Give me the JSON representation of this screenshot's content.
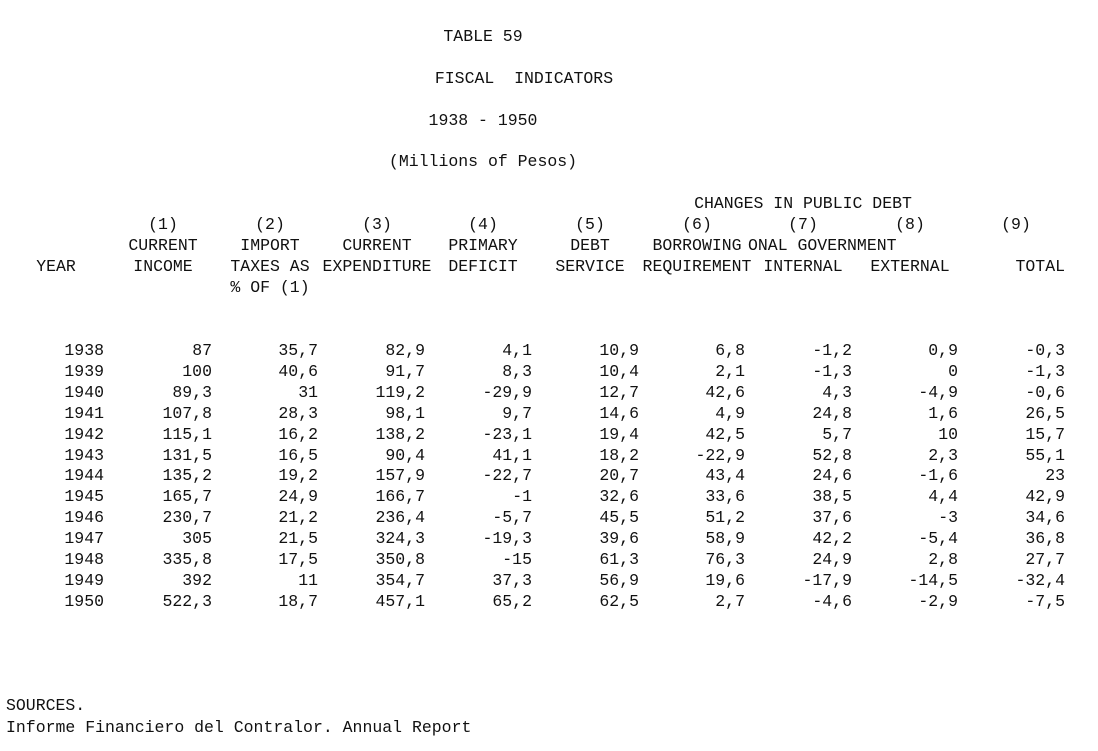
{
  "header": {
    "title": "TABLE 59",
    "subtitle": "FISCAL  INDICATORS",
    "period": "1938 - 1950",
    "units": "(Millions of Pesos)"
  },
  "table": {
    "group_header": "CHANGES IN PUBLIC DEBT",
    "group_subheader": "ONAL GOVERNMENT",
    "columns": [
      {
        "lines": [
          "YEAR"
        ]
      },
      {
        "number": "(1)",
        "lines": [
          "CURRENT",
          "INCOME"
        ]
      },
      {
        "number": "(2)",
        "lines": [
          "IMPORT",
          "TAXES AS",
          "% OF (1)"
        ]
      },
      {
        "number": "(3)",
        "lines": [
          "CURRENT",
          "EXPENDITURE"
        ]
      },
      {
        "number": "(4)",
        "lines": [
          "PRIMARY",
          "DEFICIT"
        ]
      },
      {
        "number": "(5)",
        "lines": [
          "DEBT",
          "SERVICE"
        ]
      },
      {
        "number": "(6)",
        "lines": [
          "BORROWING",
          "REQUIREMENT"
        ]
      },
      {
        "number": "(7)",
        "lines": [
          "INTERNAL"
        ]
      },
      {
        "number": "(8)",
        "lines": [
          "EXTERNAL"
        ]
      },
      {
        "number": "(9)",
        "lines": [
          "TOTAL"
        ]
      }
    ],
    "rows": [
      [
        "1938",
        "87",
        "35,7",
        "82,9",
        "4,1",
        "10,9",
        "6,8",
        "-1,2",
        "0,9",
        "-0,3"
      ],
      [
        "1939",
        "100",
        "40,6",
        "91,7",
        "8,3",
        "10,4",
        "2,1",
        "-1,3",
        "0",
        "-1,3"
      ],
      [
        "1940",
        "89,3",
        "31",
        "119,2",
        "-29,9",
        "12,7",
        "42,6",
        "4,3",
        "-4,9",
        "-0,6"
      ],
      [
        "1941",
        "107,8",
        "28,3",
        "98,1",
        "9,7",
        "14,6",
        "4,9",
        "24,8",
        "1,6",
        "26,5"
      ],
      [
        "1942",
        "115,1",
        "16,2",
        "138,2",
        "-23,1",
        "19,4",
        "42,5",
        "5,7",
        "10",
        "15,7"
      ],
      [
        "1943",
        "131,5",
        "16,5",
        "90,4",
        "41,1",
        "18,2",
        "-22,9",
        "52,8",
        "2,3",
        "55,1"
      ],
      [
        "1944",
        "135,2",
        "19,2",
        "157,9",
        "-22,7",
        "20,7",
        "43,4",
        "24,6",
        "-1,6",
        "23"
      ],
      [
        "1945",
        "165,7",
        "24,9",
        "166,7",
        "-1",
        "32,6",
        "33,6",
        "38,5",
        "4,4",
        "42,9"
      ],
      [
        "1946",
        "230,7",
        "21,2",
        "236,4",
        "-5,7",
        "45,5",
        "51,2",
        "37,6",
        "-3",
        "34,6"
      ],
      [
        "1947",
        "305",
        "21,5",
        "324,3",
        "-19,3",
        "39,6",
        "58,9",
        "42,2",
        "-5,4",
        "36,8"
      ],
      [
        "1948",
        "335,8",
        "17,5",
        "350,8",
        "-15",
        "61,3",
        "76,3",
        "24,9",
        "2,8",
        "27,7"
      ],
      [
        "1949",
        "392",
        "11",
        "354,7",
        "37,3",
        "56,9",
        "19,6",
        "-17,9",
        "-14,5",
        "-32,4"
      ],
      [
        "1950",
        "522,3",
        "18,7",
        "457,1",
        "65,2",
        "62,5",
        "2,7",
        "-4,6",
        "-2,9",
        "-7,5"
      ]
    ]
  },
  "footer": {
    "label": "SOURCES.",
    "source": "Informe Financiero del Contralor. Annual Report"
  }
}
